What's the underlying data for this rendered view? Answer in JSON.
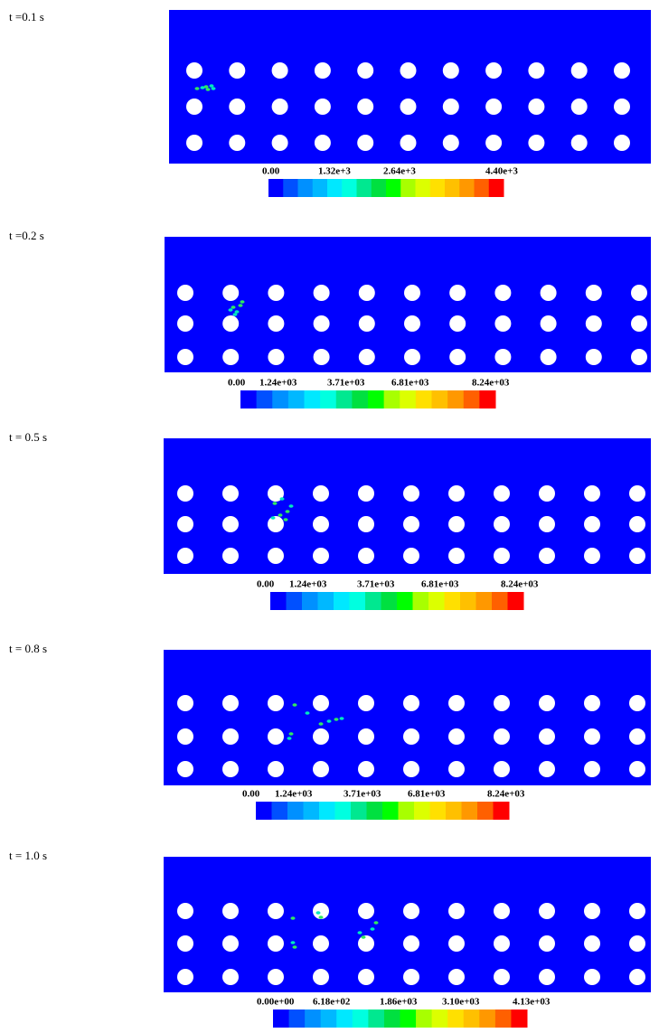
{
  "panels": [
    {
      "time": "t =0.1 s",
      "colorbar_labels": [
        "0.00",
        "1.32e+3",
        "2.64e+3",
        "4.40e+3"
      ]
    },
    {
      "time": "t =0.2 s",
      "colorbar_labels": [
        "0.00",
        "1.24e+03",
        "3.71e+03",
        "6.81e+03",
        "8.24e+03"
      ]
    },
    {
      "time": "t = 0.5 s",
      "colorbar_labels": [
        "0.00",
        "1.24e+03",
        "3.71e+03",
        "6.81e+03",
        "8.24e+03"
      ]
    },
    {
      "time": "t = 0.8 s",
      "colorbar_labels": [
        "0.00",
        "1.24e+03",
        "3.71e+03",
        "6.81e+03",
        "8.24e+03"
      ]
    },
    {
      "time": "t = 1.0 s",
      "colorbar_labels": [
        "0.00e+00",
        "6.18e+02",
        "1.86e+03",
        "3.10e+03",
        "4.13e+03"
      ]
    }
  ]
}
